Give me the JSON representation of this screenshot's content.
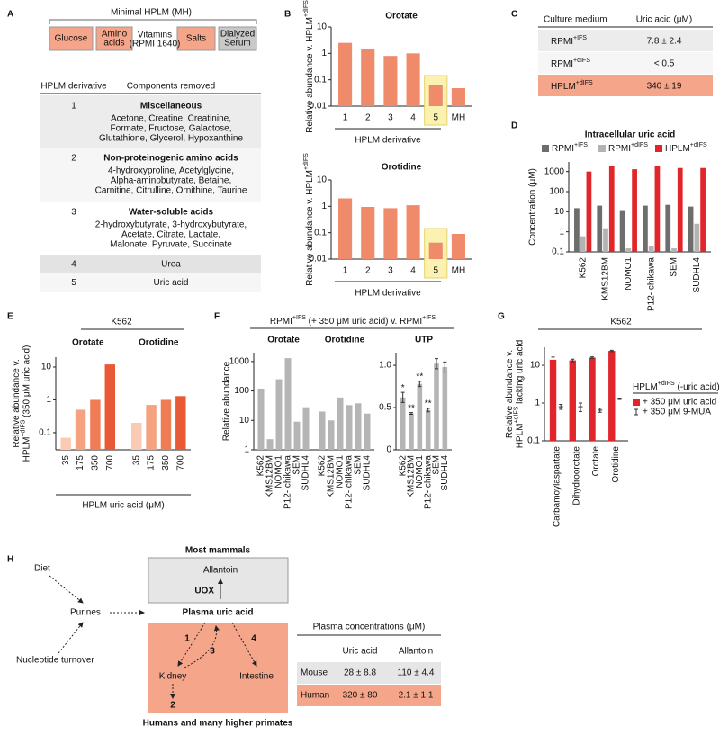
{
  "panel_labels": [
    "A",
    "B",
    "C",
    "D",
    "E",
    "F",
    "G",
    "H"
  ],
  "panel_a": {
    "media_title": "Minimal HPLM (MH)",
    "components": [
      [
        "Glucose"
      ],
      [
        "Amino",
        "acids"
      ],
      [
        "Vitamins"
      ],
      [
        "Salts"
      ],
      [
        "Dialyzed",
        "Serum"
      ]
    ],
    "vitamins_note": "(RPMI 1640)",
    "table_headers": [
      "HPLM derivative",
      "Components removed"
    ],
    "rows": [
      {
        "id": 1,
        "title": "Miscellaneous",
        "items": [
          "Acetone, Creatine, Creatinine,",
          "Formate, Fructose, Galactose,",
          "Glutathione, Glycerol, Hypoxanthine"
        ]
      },
      {
        "id": 2,
        "title": "Non-proteinogenic amino acids",
        "items": [
          "4-hydroxyproline, Acetylglycine,",
          "Alpha-aminobutyrate, Betaine,",
          "Carnitine, Citrulline, Ornithine, Taurine"
        ]
      },
      {
        "id": 3,
        "title": "Water-soluble acids",
        "items": [
          "2-hydroxybutyrate, 3-hydroxybutyrate,",
          "Acetate, Citrate, Lactate,",
          "Malonate, Pyruvate, Succinate"
        ]
      },
      {
        "id": 4,
        "title": "Urea"
      },
      {
        "id": 5,
        "title": "Uric acid"
      }
    ]
  },
  "panel_c": {
    "headers": [
      "Culture medium",
      "Uric acid (μM)"
    ],
    "rows": [
      {
        "medium": [
          "RPMI",
          {
            "sup": "+IFS"
          }
        ],
        "value": "7.8 ± 2.4"
      },
      {
        "medium": [
          "RPMI",
          {
            "sup": "+dIFS"
          }
        ],
        "value": "< 0.5"
      },
      {
        "medium": [
          "HPLM",
          {
            "sup": "+dIFS"
          }
        ],
        "value": "340 ± 19"
      }
    ]
  },
  "panel_h": {
    "most_mammals": "Most mammals",
    "allantoin": "Allantoin",
    "uox": "UOX",
    "diet": "Diet",
    "purines": "Purines",
    "turnover": "Nucleotide turnover",
    "plasma": "Plasma uric acid",
    "routes": [
      "1",
      "2",
      "3",
      "4"
    ],
    "kidney": "Kidney",
    "intestine": "Intestine",
    "humans": "Humans and many higher primates",
    "table": {
      "title": "Plasma concentrations (μM)",
      "headers": [
        "Uric acid",
        "Allantoin"
      ],
      "rows": [
        [
          "Mouse",
          "28 ± 8.8",
          "110 ± 4.4"
        ],
        [
          "Human",
          "320 ± 80",
          "2.1 ± 1.1"
        ]
      ]
    }
  },
  "chart_data": [
    {
      "type": "bar",
      "title": "Orotate",
      "ylabel": [
        [
          "Relative abundance v. HPLM",
          {
            "sup": "+dIFS"
          }
        ]
      ],
      "xlabel": "HPLM derivative",
      "categories": [
        "1",
        "2",
        "3",
        "4",
        "5",
        "MH"
      ],
      "values": [
        2.5,
        1.4,
        0.8,
        1.0,
        0.065,
        0.048
      ],
      "color": "#ef8a6a",
      "log": true,
      "ylim": [
        0.01,
        10
      ],
      "yticks": [
        0.01,
        0.1,
        1,
        10
      ],
      "highlight": "5"
    },
    {
      "type": "bar",
      "title": "Orotidine",
      "ylabel": [
        [
          "Relative abundance v. HPLM",
          {
            "sup": "+dIFS"
          }
        ]
      ],
      "xlabel": "HPLM derivative",
      "categories": [
        "1",
        "2",
        "3",
        "4",
        "5",
        "MH"
      ],
      "values": [
        2.0,
        0.95,
        0.85,
        1.1,
        0.042,
        0.09
      ],
      "color": "#ef8a6a",
      "log": true,
      "ylim": [
        0.01,
        10
      ],
      "yticks": [
        0.01,
        0.1,
        1,
        10
      ],
      "highlight": "5"
    },
    {
      "type": "bar",
      "title": "Intracellular uric acid",
      "ylabel": [
        "Concentration (μM)"
      ],
      "categories": [
        "K562",
        "KMS12BM",
        "NOMO1",
        "P12-Ichikawa",
        "SEM",
        "SUDHL4"
      ],
      "series": [
        {
          "name": [
            "RPMI",
            {
              "sup": "+IFS"
            }
          ],
          "color": "#6d6d6d",
          "values": [
            15,
            20,
            12,
            20,
            22,
            18
          ]
        },
        {
          "name": [
            "RPMI",
            {
              "sup": "+dIFS"
            }
          ],
          "color": "#b3b3b3",
          "values": [
            0.6,
            1.5,
            0.15,
            0.2,
            0.15,
            2.5
          ]
        },
        {
          "name": [
            "HPLM",
            {
              "sup": "+dIFS"
            }
          ],
          "color": "#e0262a",
          "values": [
            1000,
            1800,
            1300,
            1800,
            1500,
            1500
          ]
        }
      ],
      "log": true,
      "ylim": [
        0.1,
        3000
      ],
      "yticks": [
        0.1,
        1,
        10,
        100,
        1000
      ]
    },
    {
      "type": "bar",
      "title": "K562",
      "ylabel": [
        "Relative abundance v.",
        [
          "HPLM",
          {
            "sup": "+dIFS"
          },
          " (350 μM uric acid)"
        ]
      ],
      "xlabel": "HPLM uric acid (μM)",
      "categories": [
        35,
        175,
        350,
        700
      ],
      "groups": [
        {
          "name": "Orotate",
          "values": [
            0.07,
            0.5,
            1.0,
            12
          ]
        },
        {
          "name": "Orotidine",
          "values": [
            0.2,
            0.7,
            1.0,
            1.3
          ]
        }
      ],
      "colors": [
        "#f9cbb5",
        "#f4a27f",
        "#f07c56",
        "#e85a35"
      ],
      "log": true,
      "ylim": [
        0.03,
        20
      ],
      "yticks": [
        0.1,
        1,
        10
      ]
    },
    {
      "type": "bar",
      "title": [
        "RPMI",
        {
          "sup": "+IFS"
        },
        " (+ 350 μM uric acid) v. RPMI",
        {
          "sup": "+IFS"
        }
      ],
      "ylabel": [
        "Relative abundance"
      ],
      "categories": [
        "K562",
        "KMS12BM",
        "NOMO1",
        "P12-Ichikawa",
        "SEM",
        "SUDHL4"
      ],
      "groups": [
        {
          "name": "Orotate",
          "values": [
            120,
            2.3,
            250,
            1300,
            9,
            28
          ]
        },
        {
          "name": "Orotidine",
          "values": [
            20,
            10,
            60,
            33,
            38,
            17
          ]
        }
      ],
      "color": "#b5b5b5",
      "log": true,
      "ylim": [
        1,
        2000
      ],
      "yticks": [
        1,
        10,
        100,
        1000
      ]
    },
    {
      "type": "bar",
      "title": "UTP",
      "categories": [
        "K562",
        "KMS12BM",
        "NOMO1",
        "P12-Ichikawa",
        "SEM",
        "SUDHL4"
      ],
      "values": [
        0.62,
        0.43,
        0.78,
        0.47,
        1.02,
        0.98
      ],
      "errors": [
        0.06,
        0.01,
        0.03,
        0.02,
        0.06,
        0.06
      ],
      "annotations": [
        "*",
        "**",
        "**",
        "**",
        null,
        null
      ],
      "color": "#b5b5b5",
      "ylim": [
        0,
        1.15
      ],
      "yticks": [
        0,
        0.5,
        {
          "value": 1,
          "label": "1.0"
        }
      ]
    },
    {
      "type": "bar",
      "title": "K562",
      "ylabel": [
        "Relative abundance v.",
        [
          "HPLM",
          {
            "sup": "+dIFS"
          },
          " lacking uric acid"
        ]
      ],
      "categories": [
        "Carbamoylaspartate",
        "Dihydroorotate",
        "Orotate",
        "Orotidine"
      ],
      "legend_title": [
        "HPLM",
        {
          "sup": "+dIFS"
        },
        " (-uric acid)"
      ],
      "series": [
        {
          "name": "+ 350 μM uric acid",
          "color": "#e0262a",
          "values": [
            14,
            13.5,
            16,
            24
          ],
          "errors": [
            2.5,
            1,
            0.8,
            1
          ]
        },
        {
          "name": "+ 350 μM 9-MUA",
          "color": "#333333",
          "values": [
            0.8,
            0.8,
            0.65,
            1.3
          ],
          "errors": [
            0.12,
            0.2,
            0.08,
            0.05
          ],
          "marker": "point"
        }
      ],
      "log": true,
      "ylim": [
        0.1,
        30
      ],
      "yticks": [
        0.1,
        1,
        10
      ]
    }
  ]
}
